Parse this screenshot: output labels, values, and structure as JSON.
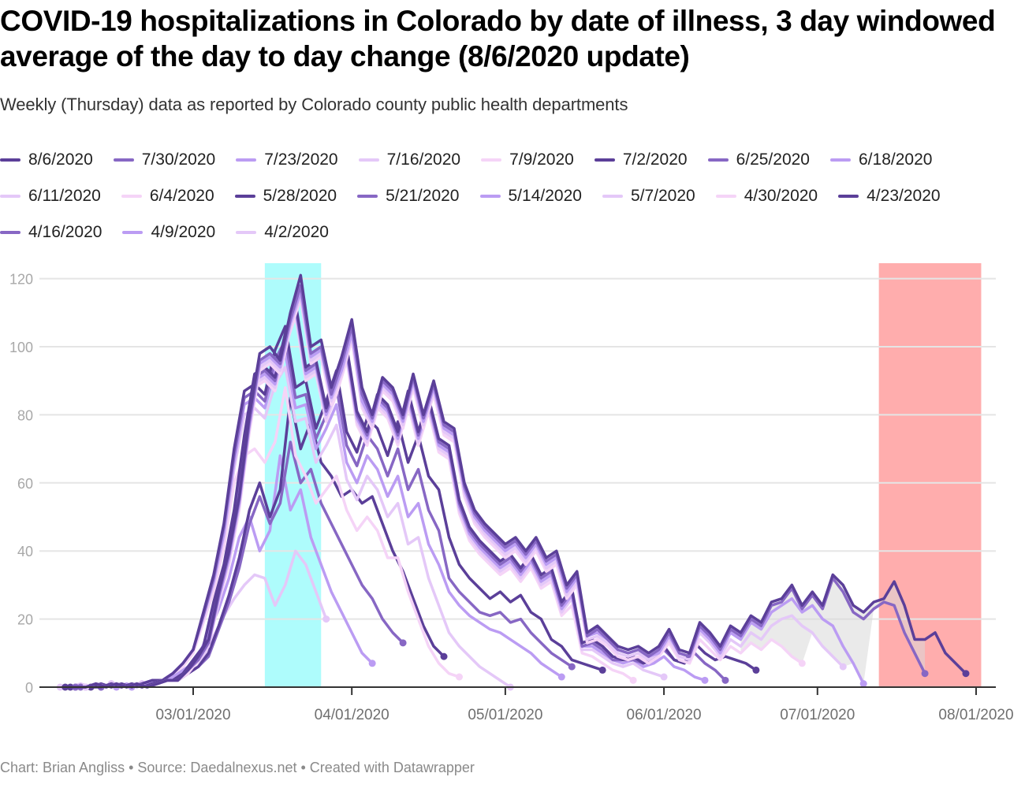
{
  "header": {
    "title": "COVID-19 hospitalizations in Colorado by date of illness, 3 day windowed average of the day to day change (8/6/2020 update)",
    "subtitle": "Weekly (Thursday) data as reported by Colorado county public health departments"
  },
  "footer": {
    "text": "Chart: Brian Angliss • Source: Daedalnexus.net • Created with Datawrapper"
  },
  "colors": {
    "palette": [
      "#5b3f99",
      "#8767c4",
      "#bb9cf3",
      "#e4c8f8",
      "#f5d4f7"
    ],
    "highlight_cyan": "#aefcfc",
    "highlight_red": "#ffadad",
    "range_fill": "#d9d9d9",
    "grid": "#e5e5e5",
    "axis": "#333333"
  },
  "chart_data": {
    "type": "line",
    "title": "COVID-19 hospitalizations in Colorado by date of illness, 3 day windowed average of the day to day change (8/6/2020 update)",
    "xlabel": "",
    "ylabel": "",
    "ylim": [
      0,
      125
    ],
    "xlim": [
      "2020-02-01",
      "2020-08-05"
    ],
    "y_ticks": [
      0,
      20,
      40,
      60,
      80,
      100,
      120
    ],
    "x_ticks": [
      {
        "date": "2020-03-01",
        "label": "03/01/2020"
      },
      {
        "date": "2020-04-01",
        "label": "04/01/2020"
      },
      {
        "date": "2020-05-01",
        "label": "05/01/2020"
      },
      {
        "date": "2020-06-01",
        "label": "06/01/2020"
      },
      {
        "date": "2020-07-01",
        "label": "07/01/2020"
      },
      {
        "date": "2020-08-01",
        "label": "08/01/2020"
      }
    ],
    "grid": true,
    "legend_position": "top",
    "step_days": 2,
    "highlight_ranges": [
      {
        "from": "2020-03-15",
        "to": "2020-03-26",
        "color": "cyan"
      },
      {
        "from": "2020-07-13",
        "to": "2020-08-02",
        "color": "red"
      }
    ],
    "series": [
      {
        "name": "8/6/2020",
        "color_index": 0,
        "start": "2020-02-05",
        "values": [
          0,
          0,
          0,
          1,
          0,
          1,
          0,
          1,
          0,
          1,
          2,
          2,
          5,
          9,
          14,
          28,
          40,
          56,
          80,
          98,
          100,
          96,
          110,
          121,
          100,
          102,
          88,
          97,
          108,
          88,
          80,
          91,
          88,
          80,
          92,
          80,
          90,
          78,
          76,
          60,
          52,
          48,
          45,
          42,
          44,
          40,
          44,
          38,
          40,
          30,
          34,
          16,
          18,
          15,
          12,
          11,
          12,
          10,
          12,
          17,
          11,
          10,
          19,
          16,
          12,
          18,
          16,
          21,
          19,
          25,
          26,
          30,
          24,
          28,
          24,
          33,
          30,
          24,
          22,
          25,
          26,
          31,
          24,
          14,
          14,
          16,
          10,
          7,
          4
        ]
      },
      {
        "name": "7/30/2020",
        "color_index": 1,
        "start": "2020-02-07",
        "values": [
          0,
          0,
          1,
          0,
          1,
          0,
          1,
          0,
          1,
          2,
          2,
          5,
          8,
          13,
          27,
          39,
          55,
          78,
          96,
          98,
          95,
          108,
          118,
          98,
          100,
          86,
          95,
          106,
          86,
          79,
          90,
          87,
          79,
          91,
          79,
          89,
          77,
          75,
          59,
          51,
          47,
          44,
          41,
          43,
          39,
          43,
          37,
          39,
          29,
          33,
          15,
          17,
          14,
          11,
          10,
          11,
          9,
          11,
          16,
          10,
          9,
          18,
          15,
          11,
          17,
          15,
          20,
          18,
          24,
          25,
          29,
          23,
          27,
          23,
          32,
          28,
          22,
          20,
          23,
          25,
          24,
          16,
          10,
          4
        ]
      },
      {
        "name": "7/23/2020",
        "color_index": 2,
        "start": "2020-02-07",
        "values": [
          0,
          0,
          1,
          0,
          1,
          0,
          1,
          0,
          1,
          2,
          2,
          5,
          8,
          13,
          26,
          38,
          54,
          77,
          95,
          97,
          94,
          107,
          116,
          97,
          99,
          85,
          93,
          104,
          84,
          78,
          89,
          86,
          78,
          90,
          78,
          88,
          76,
          74,
          58,
          50,
          46,
          43,
          40,
          42,
          38,
          42,
          36,
          38,
          28,
          32,
          15,
          16,
          14,
          11,
          10,
          11,
          9,
          10,
          15,
          10,
          9,
          17,
          14,
          10,
          16,
          14,
          19,
          17,
          22,
          24,
          26,
          22,
          24,
          20,
          18,
          12,
          7,
          1
        ]
      },
      {
        "name": "7/16/2020",
        "color_index": 3,
        "start": "2020-02-09",
        "values": [
          0,
          1,
          0,
          1,
          0,
          1,
          0,
          1,
          2,
          2,
          5,
          8,
          12,
          26,
          37,
          53,
          76,
          94,
          96,
          93,
          106,
          115,
          96,
          98,
          84,
          92,
          103,
          83,
          77,
          88,
          85,
          77,
          89,
          77,
          87,
          75,
          73,
          57,
          49,
          45,
          42,
          39,
          41,
          37,
          41,
          35,
          37,
          27,
          31,
          14,
          15,
          13,
          10,
          9,
          10,
          8,
          10,
          14,
          9,
          8,
          16,
          13,
          9,
          14,
          12,
          16,
          14,
          18,
          20,
          21,
          18,
          16,
          12,
          9,
          6
        ]
      },
      {
        "name": "7/9/2020",
        "color_index": 4,
        "start": "2020-02-09",
        "values": [
          0,
          1,
          0,
          1,
          0,
          1,
          0,
          1,
          2,
          2,
          4,
          8,
          12,
          25,
          36,
          52,
          75,
          93,
          95,
          92,
          105,
          114,
          95,
          97,
          83,
          91,
          102,
          82,
          76,
          87,
          84,
          76,
          88,
          76,
          86,
          74,
          72,
          56,
          48,
          44,
          41,
          38,
          40,
          36,
          40,
          34,
          36,
          26,
          30,
          13,
          14,
          12,
          9,
          8,
          9,
          7,
          9,
          13,
          8,
          7,
          14,
          11,
          8,
          12,
          10,
          13,
          11,
          14,
          12,
          9,
          7
        ]
      },
      {
        "name": "7/2/2020",
        "color_index": 0,
        "start": "2020-02-10",
        "values": [
          0,
          0,
          1,
          0,
          1,
          0,
          1,
          2,
          2,
          4,
          8,
          12,
          25,
          36,
          52,
          74,
          92,
          94,
          91,
          104,
          113,
          94,
          96,
          82,
          90,
          100,
          81,
          75,
          86,
          83,
          75,
          87,
          75,
          85,
          73,
          71,
          55,
          47,
          43,
          40,
          37,
          39,
          35,
          39,
          33,
          35,
          25,
          29,
          13,
          14,
          12,
          9,
          8,
          9,
          7,
          9,
          12,
          8,
          7,
          13,
          10,
          8,
          9,
          8,
          7,
          5
        ]
      },
      {
        "name": "6/25/2020",
        "color_index": 1,
        "start": "2020-02-12",
        "values": [
          0,
          1,
          0,
          1,
          0,
          1,
          2,
          2,
          4,
          7,
          12,
          24,
          35,
          51,
          73,
          91,
          93,
          90,
          103,
          112,
          93,
          95,
          81,
          89,
          99,
          80,
          74,
          85,
          82,
          74,
          86,
          74,
          84,
          72,
          70,
          54,
          46,
          42,
          39,
          36,
          38,
          34,
          38,
          32,
          34,
          24,
          28,
          12,
          13,
          11,
          8,
          8,
          8,
          7,
          8,
          11,
          8,
          7,
          10,
          7,
          5,
          2
        ]
      },
      {
        "name": "6/18/2020",
        "color_index": 2,
        "start": "2020-02-12",
        "values": [
          0,
          1,
          0,
          1,
          0,
          1,
          2,
          2,
          4,
          7,
          11,
          23,
          34,
          50,
          72,
          90,
          92,
          89,
          102,
          111,
          92,
          94,
          80,
          88,
          98,
          79,
          73,
          84,
          81,
          73,
          85,
          73,
          83,
          71,
          69,
          53,
          45,
          41,
          38,
          35,
          37,
          33,
          37,
          31,
          33,
          23,
          27,
          12,
          12,
          10,
          8,
          7,
          8,
          6,
          7,
          9,
          6,
          5,
          3,
          2
        ]
      },
      {
        "name": "6/11/2020",
        "color_index": 3,
        "start": "2020-02-14",
        "values": [
          1,
          0,
          1,
          0,
          1,
          2,
          2,
          4,
          7,
          11,
          22,
          33,
          49,
          71,
          89,
          91,
          88,
          101,
          110,
          91,
          93,
          79,
          87,
          97,
          78,
          72,
          83,
          80,
          72,
          84,
          72,
          82,
          70,
          68,
          52,
          44,
          40,
          37,
          34,
          36,
          32,
          36,
          30,
          32,
          22,
          26,
          11,
          11,
          9,
          7,
          6,
          7,
          5,
          4,
          3
        ]
      },
      {
        "name": "6/4/2020",
        "color_index": 4,
        "start": "2020-02-14",
        "values": [
          1,
          0,
          1,
          0,
          1,
          2,
          2,
          4,
          7,
          11,
          22,
          33,
          48,
          70,
          88,
          90,
          87,
          100,
          109,
          90,
          92,
          78,
          86,
          96,
          77,
          71,
          82,
          79,
          71,
          83,
          71,
          81,
          69,
          67,
          51,
          43,
          39,
          36,
          33,
          35,
          31,
          35,
          29,
          31,
          21,
          24,
          10,
          9,
          7,
          5,
          4,
          2
        ]
      },
      {
        "name": "5/28/2020",
        "color_index": 0,
        "start": "2020-02-06",
        "values": [
          0,
          0,
          0,
          1,
          0,
          1,
          0,
          1,
          2,
          2,
          4,
          7,
          11,
          22,
          33,
          48,
          70,
          87,
          89,
          86,
          99,
          106,
          88,
          90,
          76,
          84,
          93,
          75,
          69,
          79,
          76,
          68,
          78,
          66,
          74,
          62,
          58,
          44,
          36,
          32,
          29,
          26,
          28,
          25,
          27,
          22,
          20,
          14,
          12,
          8,
          7,
          6,
          5
        ]
      },
      {
        "name": "5/21/2020",
        "color_index": 1,
        "start": "2020-02-08",
        "values": [
          0,
          0,
          1,
          0,
          1,
          0,
          1,
          2,
          2,
          4,
          7,
          11,
          21,
          32,
          47,
          68,
          85,
          87,
          84,
          96,
          102,
          85,
          86,
          73,
          80,
          88,
          71,
          65,
          74,
          70,
          62,
          70,
          58,
          64,
          52,
          46,
          32,
          28,
          25,
          22,
          21,
          22,
          19,
          20,
          16,
          13,
          10,
          8,
          6
        ]
      },
      {
        "name": "5/14/2020",
        "color_index": 2,
        "start": "2020-02-18",
        "values": [
          0,
          1,
          2,
          2,
          4,
          7,
          11,
          21,
          31,
          45,
          66,
          83,
          85,
          82,
          93,
          98,
          82,
          83,
          70,
          76,
          83,
          66,
          60,
          68,
          64,
          56,
          62,
          50,
          54,
          42,
          36,
          28,
          24,
          21,
          19,
          17,
          16,
          14,
          12,
          10,
          7,
          5,
          3
        ]
      },
      {
        "name": "5/7/2020",
        "color_index": 3,
        "start": "2020-02-20",
        "values": [
          1,
          2,
          2,
          4,
          7,
          11,
          20,
          30,
          44,
          64,
          80,
          82,
          79,
          89,
          94,
          78,
          79,
          66,
          71,
          77,
          61,
          55,
          62,
          58,
          50,
          54,
          42,
          44,
          32,
          24,
          16,
          12,
          9,
          6,
          4,
          2,
          0
        ]
      },
      {
        "name": "4/30/2020",
        "color_index": 4,
        "start": "2020-02-20",
        "values": [
          1,
          2,
          2,
          4,
          6,
          10,
          19,
          28,
          41,
          60,
          68,
          70,
          66,
          72,
          88,
          68,
          62,
          54,
          58,
          62,
          52,
          46,
          50,
          46,
          38,
          38,
          28,
          20,
          12,
          7,
          4,
          3
        ]
      },
      {
        "name": "4/23/2020",
        "color_index": 0,
        "start": "2020-02-07",
        "values": [
          0,
          0,
          1,
          0,
          1,
          0,
          1,
          0,
          1,
          2,
          2,
          4,
          6,
          10,
          18,
          27,
          38,
          52,
          60,
          50,
          58,
          85,
          70,
          78,
          66,
          62,
          56,
          58,
          54,
          56,
          48,
          40,
          34,
          26,
          18,
          12,
          9
        ]
      },
      {
        "name": "4/16/2020",
        "color_index": 1,
        "start": "2020-02-09",
        "values": [
          0,
          1,
          0,
          1,
          0,
          1,
          0,
          1,
          2,
          2,
          4,
          6,
          9,
          17,
          25,
          35,
          48,
          56,
          48,
          54,
          72,
          60,
          64,
          54,
          48,
          42,
          36,
          30,
          26,
          20,
          16,
          13
        ]
      },
      {
        "name": "4/9/2020",
        "color_index": 2,
        "start": "2020-02-15",
        "values": [
          0,
          1,
          0,
          1,
          2,
          2,
          4,
          6,
          9,
          16,
          23,
          32,
          44,
          50,
          40,
          46,
          68,
          52,
          58,
          44,
          36,
          28,
          22,
          16,
          10,
          7
        ]
      },
      {
        "name": "4/2/2020",
        "color_index": 3,
        "start": "2020-02-04",
        "values": [
          0,
          0,
          1,
          0,
          1,
          0,
          1,
          0,
          1,
          1,
          2,
          2,
          3,
          6,
          9,
          15,
          21,
          26,
          30,
          33,
          32,
          24,
          30,
          40,
          36,
          28,
          20
        ]
      }
    ]
  }
}
